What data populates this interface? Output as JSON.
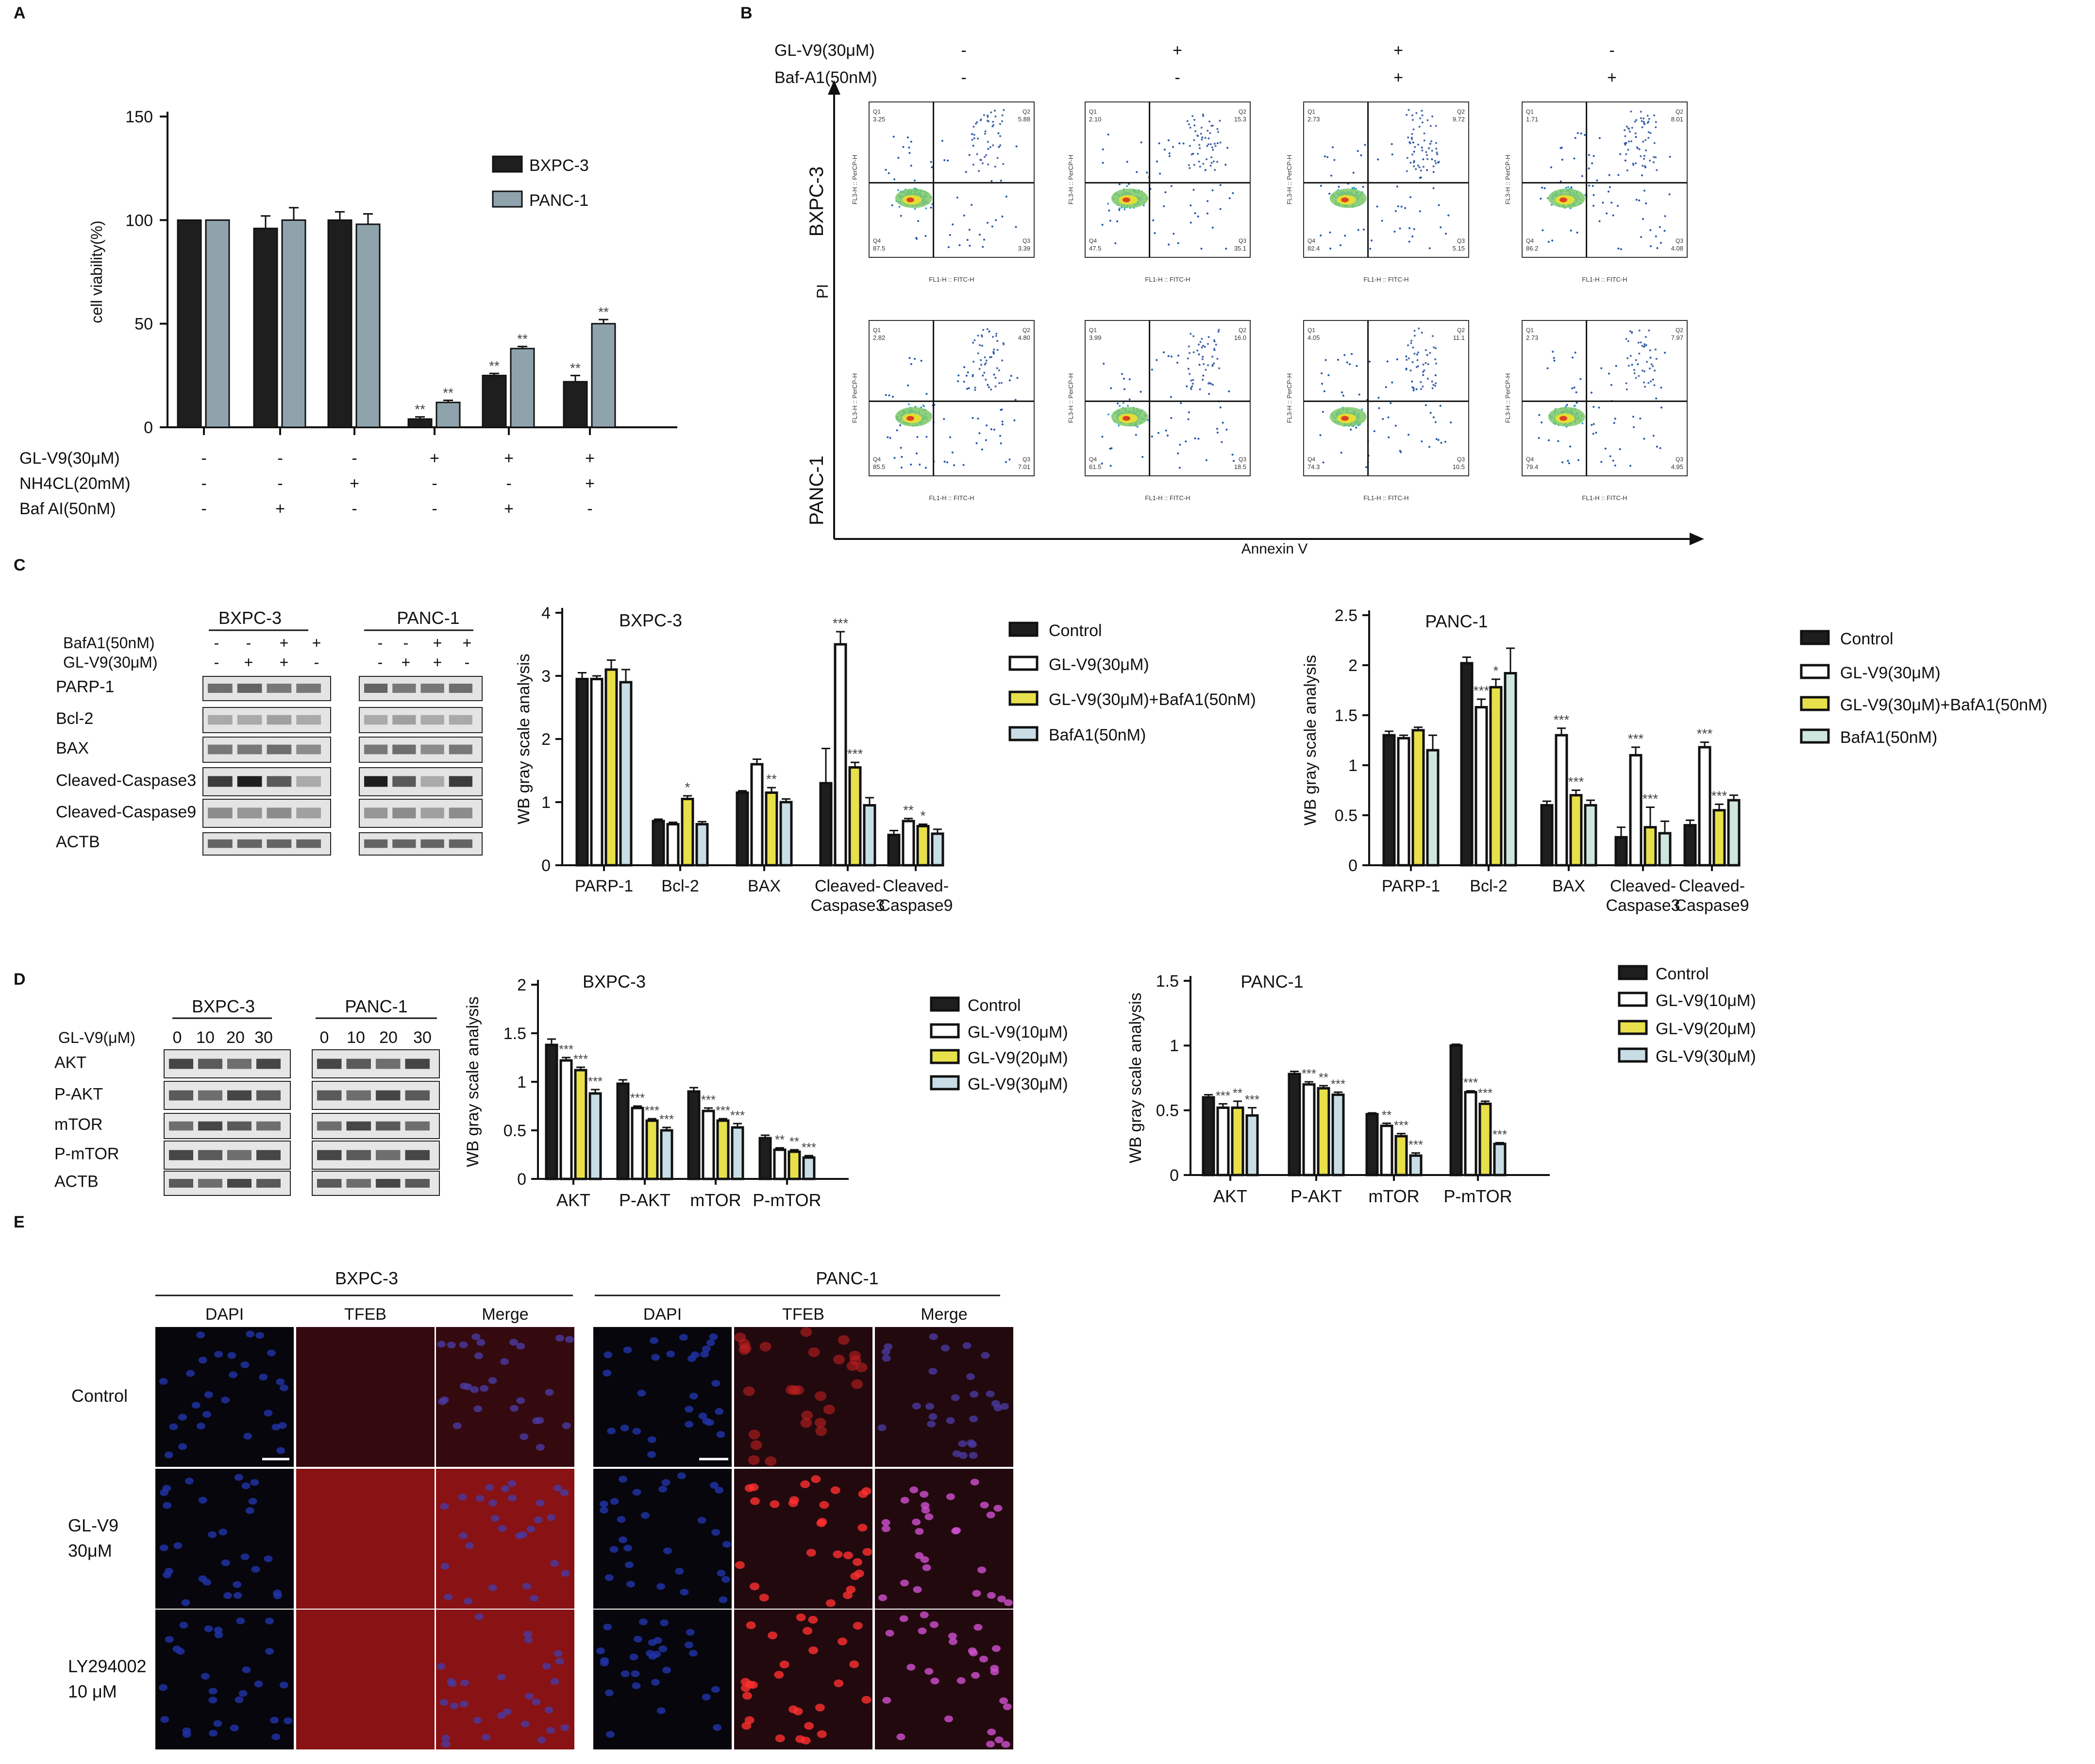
{
  "panelA": {
    "letter": "A",
    "ylabel": "cell viability(%)",
    "yticks": [
      "0",
      "50",
      "100",
      "150"
    ],
    "legend": [
      "BXPC-3",
      "PANC-1"
    ],
    "treat_rows": [
      {
        "label": "GL-V9(30μM)",
        "signs": [
          "-",
          "-",
          "-",
          "+",
          "+",
          "+"
        ]
      },
      {
        "label": "NH4CL(20mM)",
        "signs": [
          "-",
          "-",
          "+",
          "-",
          "-",
          "+"
        ]
      },
      {
        "label": "Baf  AI(50nM)",
        "signs": [
          "-",
          "+",
          "-",
          "-",
          "+",
          "-"
        ]
      }
    ],
    "sig": [
      "",
      "",
      "",
      "**",
      "**",
      "**"
    ]
  },
  "panelB": {
    "letter": "B",
    "treat_rows": [
      {
        "label": "GL-V9(30μM)",
        "signs": [
          "-",
          "+",
          "+",
          "-"
        ]
      },
      {
        "label": "Baf-A1(50nM)",
        "signs": [
          "-",
          "-",
          "+",
          "+"
        ]
      }
    ],
    "row_labels": [
      "BXPC-3",
      "PANC-1"
    ],
    "pi_label": "PI",
    "annexin_label": "Annexin V",
    "xaxis_label": "FL1-H :: FITC-H",
    "yaxis_label": "FL3-H :: PerCP-H",
    "quadrants": [
      [
        [
          "3.25",
          "5.88",
          "87.5",
          "3.39"
        ],
        [
          "2.10",
          "15.3",
          "47.5",
          "35.1"
        ],
        [
          "2.73",
          "9.72",
          "82.4",
          "5.15"
        ],
        [
          "1.71",
          "8.01",
          "86.2",
          "4.08"
        ]
      ],
      [
        [
          "2.82",
          "4.80",
          "85.5",
          "7.01"
        ],
        [
          "3.99",
          "16.0",
          "61.5",
          "18.5"
        ],
        [
          "4.05",
          "11.1",
          "74.3",
          "10.5"
        ],
        [
          "2.73",
          "7.97",
          "79.4",
          "4.95"
        ]
      ]
    ]
  },
  "panelC": {
    "letter": "C",
    "blot_groups": [
      "BXPC-3",
      "PANC-1"
    ],
    "treat_rows": [
      {
        "label": "BafA1(50nM)",
        "signs": [
          "-",
          "-",
          "+",
          "+"
        ]
      },
      {
        "label": "GL-V9(30μM)",
        "signs": [
          "-",
          "+",
          "+",
          "-"
        ]
      }
    ],
    "blot_rows": [
      "PARP-1",
      "Bcl-2",
      "BAX",
      "Cleaved-Caspase3",
      "Cleaved-Caspase9",
      "ACTB"
    ],
    "ylabel": "WB gray scale analysis",
    "legend": [
      "Control",
      "GL-V9(30μM)",
      "GL-V9(30μM)+BafA1(50nM)",
      "BafA1(50nM)"
    ],
    "bx_title": "BXPC-3",
    "pa_title": "PANC-1",
    "bx_yticks": [
      "0",
      "1",
      "2",
      "3",
      "4"
    ],
    "pa_yticks": [
      "0",
      "0.5",
      "1",
      "1.5",
      "2",
      "2.5"
    ],
    "cat_lines": [
      [
        "PARP-1"
      ],
      [
        "Bcl-2"
      ],
      [
        "BAX"
      ],
      [
        "Cleaved-",
        "Caspase3"
      ],
      [
        "Cleaved-",
        "Caspase9"
      ]
    ]
  },
  "panelD": {
    "letter": "D",
    "blot_groups": [
      "BXPC-3",
      "PANC-1"
    ],
    "dose_label": "GL-V9(μM)",
    "doses": [
      "0",
      "10",
      "20",
      "30"
    ],
    "blot_rows": [
      "AKT",
      "P-AKT",
      "mTOR",
      "P-mTOR",
      "ACTB"
    ],
    "ylabel": "WB gray scale analysis",
    "legend": [
      "Control",
      "GL-V9(10μM)",
      "GL-V9(20μM)",
      "GL-V9(30μM)"
    ],
    "bx_title": "BXPC-3",
    "pa_title": "PANC-1",
    "bx_yticks": [
      "0",
      "0.5",
      "1",
      "1.5",
      "2"
    ],
    "pa_yticks": [
      "0",
      "0.5",
      "1",
      "1.5"
    ],
    "categories": [
      "AKT",
      "P-AKT",
      "mTOR",
      "P-mTOR"
    ]
  },
  "panelE": {
    "letter": "E",
    "groups": [
      "BXPC-3",
      "PANC-1"
    ],
    "col_labels": [
      "DAPI",
      "TFEB",
      "Merge"
    ],
    "row_labels": [
      [
        "Control"
      ],
      [
        "GL-V9",
        "30μM"
      ],
      [
        "LY294002",
        "10 μM"
      ]
    ]
  },
  "colors": {
    "dark": "#1e1e1e",
    "pancA": "#8fa3ad",
    "yellow": "#e8e04a",
    "lightblue": "#c9dde6",
    "mint": "#cfe6e0"
  },
  "chart_data": [
    {
      "type": "bar",
      "panel": "A",
      "ylabel": "cell viability(%)",
      "ylim": [
        0,
        150
      ],
      "series": [
        {
          "name": "BXPC-3",
          "values": [
            100,
            96,
            100,
            4,
            25,
            22
          ]
        },
        {
          "name": "PANC-1",
          "values": [
            100,
            100,
            98,
            12,
            38,
            50
          ]
        }
      ],
      "errors": [
        [
          0,
          6,
          4,
          1,
          1,
          3
        ],
        [
          0,
          6,
          5,
          1,
          1,
          2
        ]
      ]
    },
    {
      "type": "bar",
      "panel": "C-BXPC-3",
      "title": "BXPC-3",
      "ylabel": "WB gray scale analysis",
      "ylim": [
        0,
        4
      ],
      "categories": [
        "PARP-1",
        "Bcl-2",
        "BAX",
        "Cleaved-Caspase3",
        "Cleaved-Caspase9"
      ],
      "series": [
        {
          "name": "Control",
          "values": [
            2.95,
            0.7,
            1.15,
            1.3,
            0.48
          ]
        },
        {
          "name": "GL-V9(30μM)",
          "values": [
            2.95,
            0.65,
            1.6,
            3.5,
            0.7
          ]
        },
        {
          "name": "GL-V9(30μM)+BafA1(50nM)",
          "values": [
            3.1,
            1.05,
            1.15,
            1.55,
            0.62
          ]
        },
        {
          "name": "BafA1(50nM)",
          "values": [
            2.9,
            0.65,
            1.0,
            0.95,
            0.5
          ]
        }
      ],
      "errors": [
        [
          0.1,
          0.03,
          0.03,
          0.55,
          0.07
        ],
        [
          0.05,
          0.03,
          0.08,
          0.2,
          0.04
        ],
        [
          0.15,
          0.05,
          0.08,
          0.08,
          0.03
        ],
        [
          0.2,
          0.04,
          0.05,
          0.12,
          0.07
        ]
      ],
      "sig": [
        [
          "",
          "",
          "",
          "",
          ""
        ],
        [
          "",
          "",
          "",
          "***",
          "**"
        ],
        [
          "",
          "*",
          "**",
          "***",
          "*"
        ],
        [
          "",
          "",
          "",
          "",
          ""
        ]
      ]
    },
    {
      "type": "bar",
      "panel": "C-PANC-1",
      "title": "PANC-1",
      "ylabel": "WB gray scale analysis",
      "ylim": [
        0,
        2.5
      ],
      "categories": [
        "PARP-1",
        "Bcl-2",
        "BAX",
        "Cleaved-Caspase3",
        "Cleaved-Caspase9"
      ],
      "series": [
        {
          "name": "Control",
          "values": [
            1.3,
            2.02,
            0.6,
            0.28,
            0.4
          ]
        },
        {
          "name": "GL-V9(30μM)",
          "values": [
            1.27,
            1.58,
            1.3,
            1.1,
            1.18
          ]
        },
        {
          "name": "GL-V9(30μM)+BafA1(50nM)",
          "values": [
            1.35,
            1.78,
            0.7,
            0.38,
            0.55
          ]
        },
        {
          "name": "BafA1(50nM)",
          "values": [
            1.15,
            1.92,
            0.6,
            0.32,
            0.65
          ]
        }
      ],
      "errors": [
        [
          0.04,
          0.06,
          0.04,
          0.1,
          0.05
        ],
        [
          0.03,
          0.08,
          0.07,
          0.08,
          0.05
        ],
        [
          0.03,
          0.08,
          0.05,
          0.2,
          0.06
        ],
        [
          0.15,
          0.25,
          0.05,
          0.12,
          0.05
        ]
      ],
      "sig": [
        [
          "",
          "",
          "",
          "",
          ""
        ],
        [
          "",
          "***",
          "***",
          "***",
          "***"
        ],
        [
          "",
          "*",
          "***",
          "***",
          "***"
        ],
        [
          "",
          "",
          "",
          "",
          ""
        ]
      ]
    },
    {
      "type": "bar",
      "panel": "D-BXPC-3",
      "title": "BXPC-3",
      "ylabel": "WB gray scale analysis",
      "ylim": [
        0,
        2
      ],
      "categories": [
        "AKT",
        "P-AKT",
        "mTOR",
        "P-mTOR"
      ],
      "series": [
        {
          "name": "Control",
          "values": [
            1.38,
            0.98,
            0.9,
            0.42
          ]
        },
        {
          "name": "GL-V9(10μM)",
          "values": [
            1.22,
            0.73,
            0.7,
            0.3
          ]
        },
        {
          "name": "GL-V9(20μM)",
          "values": [
            1.12,
            0.6,
            0.6,
            0.28
          ]
        },
        {
          "name": "GL-V9(30μM)",
          "values": [
            0.88,
            0.5,
            0.53,
            0.22
          ]
        }
      ],
      "errors": [
        [
          0.06,
          0.04,
          0.04,
          0.03
        ],
        [
          0.03,
          0.02,
          0.03,
          0.02
        ],
        [
          0.03,
          0.02,
          0.02,
          0.02
        ],
        [
          0.04,
          0.03,
          0.04,
          0.02
        ]
      ],
      "sig": [
        [
          "",
          "",
          "",
          ""
        ],
        [
          "***",
          "***",
          "***",
          "**"
        ],
        [
          "***",
          "***",
          "***",
          "**"
        ],
        [
          "***",
          "***",
          "***",
          "***"
        ]
      ]
    },
    {
      "type": "bar",
      "panel": "D-PANC-1",
      "title": "PANC-1",
      "ylabel": "WB gray scale analysis",
      "ylim": [
        0,
        1.5
      ],
      "categories": [
        "AKT",
        "P-AKT",
        "mTOR",
        "P-mTOR"
      ],
      "series": [
        {
          "name": "Control",
          "values": [
            0.6,
            0.78,
            0.47,
            1.0
          ]
        },
        {
          "name": "GL-V9(10μM)",
          "values": [
            0.52,
            0.7,
            0.38,
            0.64
          ]
        },
        {
          "name": "GL-V9(20μM)",
          "values": [
            0.52,
            0.67,
            0.3,
            0.55
          ]
        },
        {
          "name": "GL-V9(30μM)",
          "values": [
            0.46,
            0.62,
            0.15,
            0.24
          ]
        }
      ],
      "errors": [
        [
          0.02,
          0.02,
          0.01,
          0.01
        ],
        [
          0.03,
          0.02,
          0.02,
          0.01
        ],
        [
          0.05,
          0.02,
          0.02,
          0.02
        ],
        [
          0.06,
          0.02,
          0.02,
          0.01
        ]
      ],
      "sig": [
        [
          "",
          "",
          "",
          ""
        ],
        [
          "***",
          "***",
          "**",
          "***"
        ],
        [
          "**",
          "**",
          "***",
          "***"
        ],
        [
          "***",
          "***",
          "***",
          "***"
        ]
      ]
    }
  ]
}
